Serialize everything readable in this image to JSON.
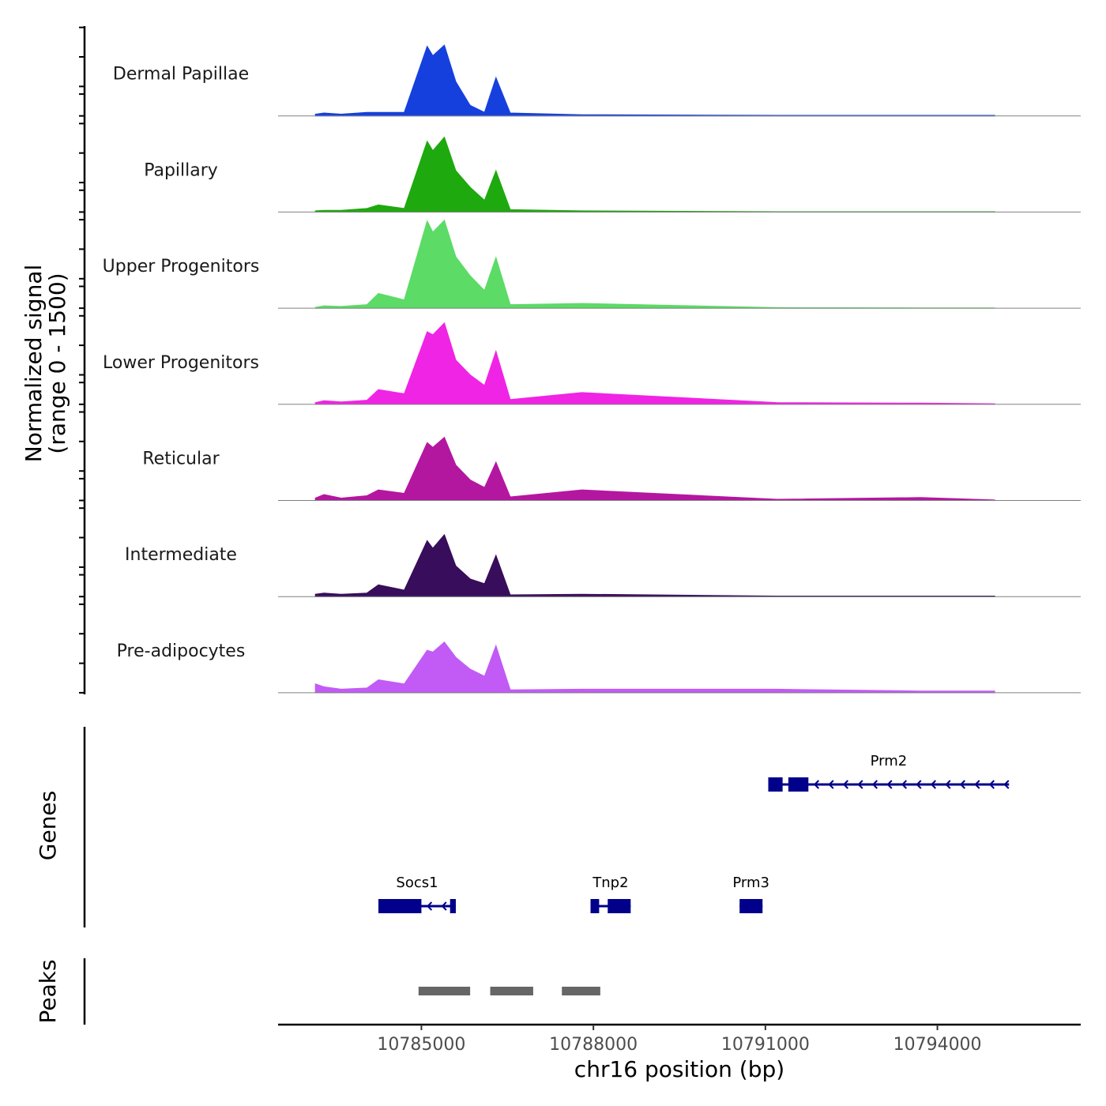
{
  "chart_data": {
    "type": "area",
    "title": "",
    "ylabel": "Normalized signal\n(range 0 - 1500)",
    "ylabel_lines": [
      "Normalized signal",
      "(range 0 - 1500)"
    ],
    "xlabel": "chr16 position (bp)",
    "xlim": [
      10782500,
      10796500
    ],
    "x_ticks": [
      10785000,
      10788000,
      10791000,
      10794000
    ],
    "x_tick_labels": [
      "10785000",
      "10788000",
      "10791000",
      "10794000"
    ],
    "signal_range": [
      0,
      1500
    ],
    "x": [
      10783150,
      10783300,
      10783600,
      10784050,
      10784250,
      10784700,
      10785100,
      10785200,
      10785400,
      10785600,
      10785850,
      10786100,
      10786300,
      10786550,
      10787800,
      10791200,
      10793700,
      10795000
    ],
    "series": [
      {
        "name": "Dermal Papillae",
        "color": "#1640de",
        "values": [
          30,
          50,
          30,
          60,
          60,
          60,
          1180,
          1020,
          1200,
          580,
          180,
          60,
          650,
          50,
          20,
          10,
          10,
          10
        ]
      },
      {
        "name": "Papillary",
        "color": "#1ea90e",
        "values": [
          20,
          30,
          30,
          60,
          120,
          60,
          1200,
          1040,
          1270,
          700,
          420,
          200,
          700,
          40,
          20,
          5,
          5,
          5
        ]
      },
      {
        "name": "Upper Progenitors",
        "color": "#5cdb66",
        "values": [
          15,
          40,
          30,
          60,
          250,
          140,
          1480,
          1290,
          1490,
          870,
          550,
          300,
          860,
          60,
          80,
          10,
          5,
          5
        ]
      },
      {
        "name": "Lower Progenitors",
        "color": "#f024e4",
        "values": [
          30,
          60,
          40,
          70,
          250,
          180,
          1230,
          1180,
          1380,
          750,
          500,
          320,
          900,
          80,
          200,
          30,
          20,
          10
        ]
      },
      {
        "name": "Reticular",
        "color": "#b4179f",
        "values": [
          40,
          100,
          40,
          80,
          180,
          120,
          980,
          900,
          1070,
          600,
          350,
          220,
          650,
          60,
          180,
          20,
          50,
          10
        ]
      },
      {
        "name": "Intermediate",
        "color": "#380d5c",
        "values": [
          40,
          60,
          40,
          60,
          200,
          110,
          950,
          820,
          1050,
          520,
          300,
          220,
          700,
          30,
          40,
          10,
          10,
          10
        ]
      },
      {
        "name": "Pre-adipocytes",
        "color": "#c25bf5",
        "values": [
          150,
          100,
          60,
          80,
          220,
          150,
          720,
          690,
          860,
          600,
          400,
          280,
          800,
          50,
          60,
          60,
          30,
          30
        ]
      }
    ],
    "genes": {
      "title": "Genes",
      "color": "#00008b",
      "items": [
        {
          "name": "Prm2",
          "start": 10791050,
          "end": 10795250,
          "strand": "-",
          "exons": [
            [
              10791050,
              10791300
            ],
            [
              10791400,
              10791750
            ]
          ]
        },
        {
          "name": "Socs1",
          "start": 10784250,
          "end": 10785600,
          "strand": "-",
          "exons": [
            [
              10784250,
              10785000
            ],
            [
              10785500,
              10785600
            ]
          ]
        },
        {
          "name": "Tnp2",
          "start": 10787950,
          "end": 10788650,
          "strand": "-",
          "exons": [
            [
              10787950,
              10788100
            ],
            [
              10788250,
              10788650
            ]
          ]
        },
        {
          "name": "Prm3",
          "start": 10790550,
          "end": 10790950,
          "strand": "-",
          "exons": [
            [
              10790550,
              10790950
            ]
          ]
        }
      ]
    },
    "peaks": {
      "title": "Peaks",
      "color": "#666666",
      "regions": [
        [
          10784950,
          10785850
        ],
        [
          10786200,
          10786950
        ],
        [
          10787450,
          10788120
        ]
      ]
    }
  }
}
